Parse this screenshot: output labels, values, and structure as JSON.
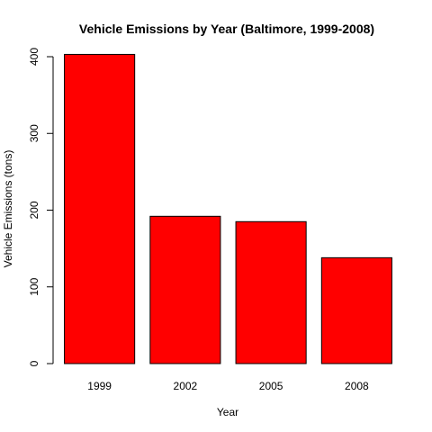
{
  "chart_data": {
    "type": "bar",
    "title": "Vehicle Emissions by Year (Baltimore, 1999-2008)",
    "xlabel": "Year",
    "ylabel": "Vehicle Emissions (tons)",
    "categories": [
      "1999",
      "2002",
      "2005",
      "2008"
    ],
    "values": [
      403,
      192,
      185,
      138
    ],
    "ylim": [
      0,
      400
    ],
    "yticks": [
      0,
      100,
      200,
      300,
      400
    ],
    "bar_color": "#ff0000",
    "grid": false,
    "legend": "none"
  }
}
